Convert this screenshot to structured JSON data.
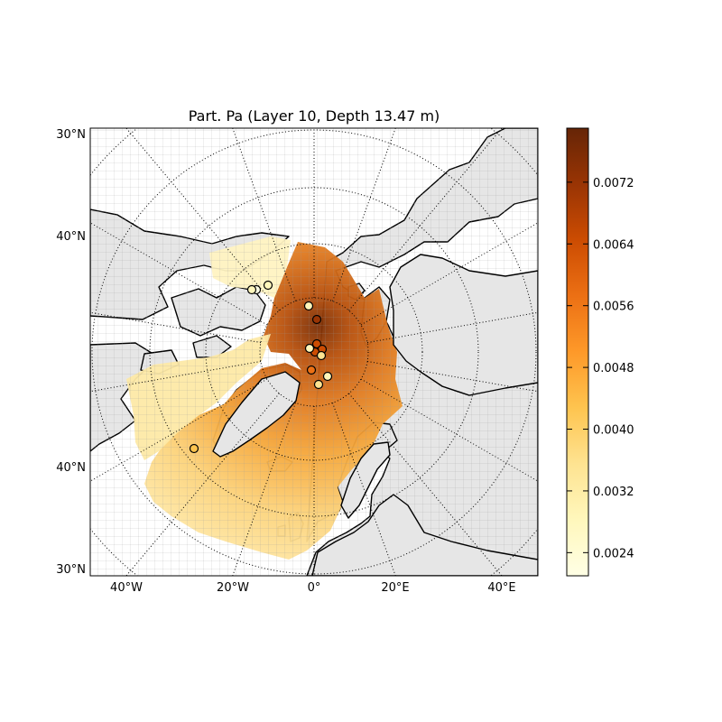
{
  "map": {
    "title": "Part. Pa (Layer 10, Depth 13.47 m)",
    "projection": "north polar stereographic",
    "lat_labels_left": [
      "30°N",
      "40°N",
      "40°N",
      "30°N"
    ],
    "lon_labels_bottom": [
      "40°W",
      "20°W",
      "0°",
      "20°E",
      "40°E"
    ],
    "colors": {
      "land": "#e6e6e6",
      "ocean": "#ffffff",
      "coast": "#000000",
      "graticule": "#000000",
      "model_grid": "#b0b0b0"
    }
  },
  "colorbar": {
    "colormap": "YlOrBr",
    "range": [
      0.0021,
      0.0079
    ],
    "ticks": [
      "0.0024",
      "0.0032",
      "0.0040",
      "0.0048",
      "0.0056",
      "0.0064",
      "0.0072"
    ],
    "stops": [
      "#ffffe5",
      "#fff7bc",
      "#fee391",
      "#fec44f",
      "#fe9929",
      "#ec7014",
      "#cc4c02",
      "#993404",
      "#662506"
    ]
  },
  "observation_markers": [
    {
      "value": 0.0024
    },
    {
      "value": 0.0025
    },
    {
      "value": 0.0027
    },
    {
      "value": 0.003
    },
    {
      "value": 0.0072
    },
    {
      "value": 0.0066
    },
    {
      "value": 0.0062
    },
    {
      "value": 0.0068
    },
    {
      "value": 0.0034
    },
    {
      "value": 0.0058
    },
    {
      "value": 0.0031
    },
    {
      "value": 0.0036
    },
    {
      "value": 0.0045
    },
    {
      "value": 0.003
    }
  ]
}
